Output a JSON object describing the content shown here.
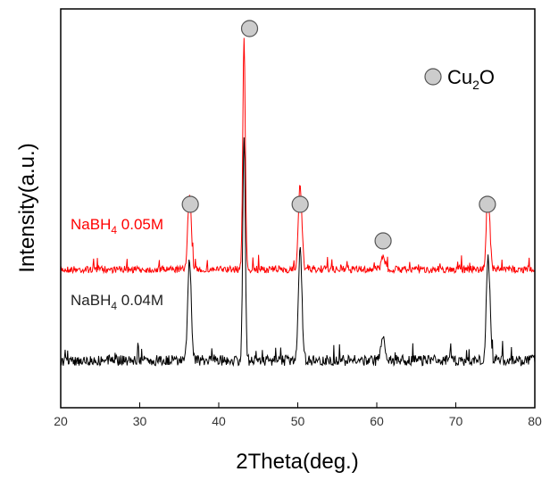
{
  "chart_data": {
    "type": "line",
    "xlabel": "2Theta(deg.)",
    "ylabel": "Intensity(a.u.)",
    "xlim": [
      20,
      80
    ],
    "x_ticks": [
      "20",
      "30",
      "40",
      "50",
      "60",
      "70",
      "80"
    ],
    "y_ticks_shown": false,
    "grid": false,
    "series": [
      {
        "label_prefix": "NaBH",
        "label_sub": "4",
        "label_suffix": " 0.05M",
        "color": "#ff0000",
        "role": "upper",
        "peaks": [
          {
            "x": 36.3,
            "h": 0.32
          },
          {
            "x": 43.2,
            "h": 1.0
          },
          {
            "x": 50.3,
            "h": 0.36
          },
          {
            "x": 60.8,
            "h": 0.06
          },
          {
            "x": 74.1,
            "h": 0.31
          }
        ]
      },
      {
        "label_prefix": "NaBH",
        "label_sub": "4",
        "label_suffix": " 0.04M",
        "color": "#000000",
        "role": "lower",
        "peaks": [
          {
            "x": 36.3,
            "h": 0.45
          },
          {
            "x": 43.2,
            "h": 1.0
          },
          {
            "x": 50.3,
            "h": 0.5
          },
          {
            "x": 60.8,
            "h": 0.12
          },
          {
            "x": 74.1,
            "h": 0.46
          }
        ]
      }
    ],
    "markers": [
      {
        "x": 36.4,
        "tier": "upper-minor"
      },
      {
        "x": 43.9,
        "tier": "top"
      },
      {
        "x": 50.3,
        "tier": "upper-minor"
      },
      {
        "x": 60.8,
        "tier": "upper-small"
      },
      {
        "x": 74.0,
        "tier": "upper-minor"
      }
    ],
    "legend": {
      "symbol": "gray-circle",
      "text_main": "Cu",
      "text_sub": "2",
      "text_end": "O",
      "placement": "top-right"
    },
    "colors": {
      "marker_fill": "#cccccc",
      "marker_stroke": "#555555",
      "upper_series": "#ff0000",
      "lower_series": "#000000"
    }
  }
}
